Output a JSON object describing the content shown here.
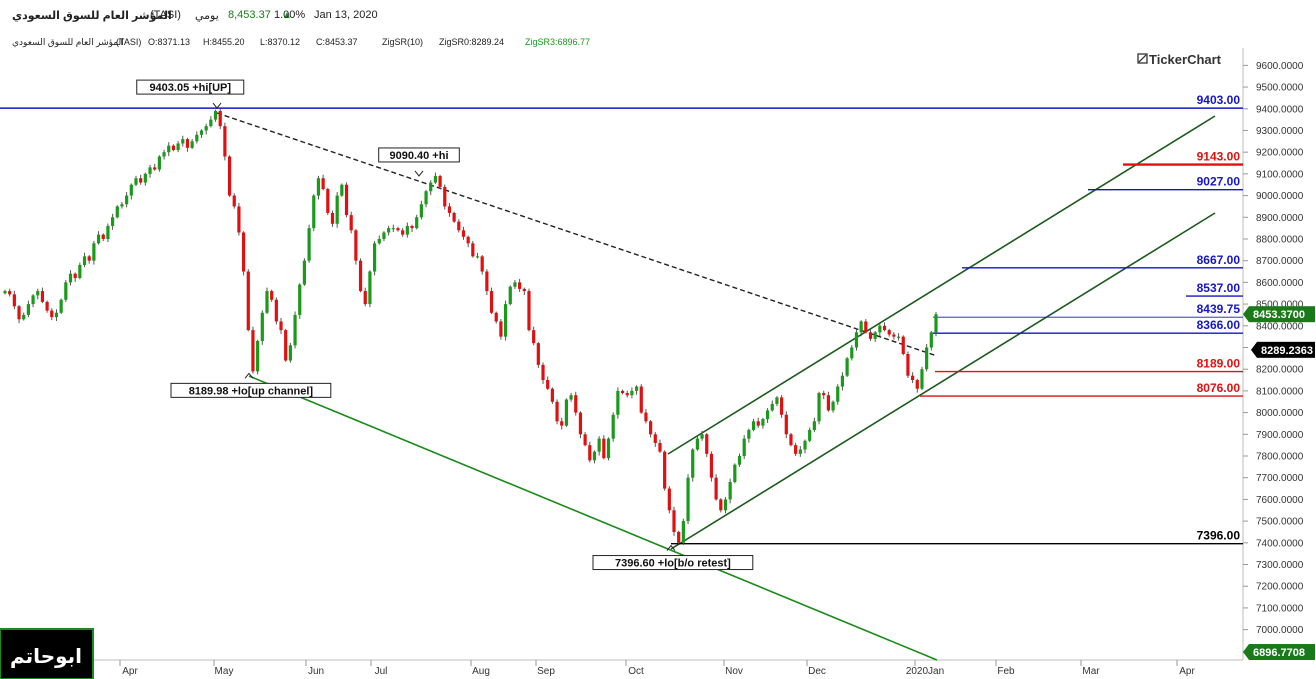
{
  "header": {
    "symbol_name": "المؤشر العام للسوق السعودي",
    "symbol_code": "(TASI)",
    "period": "يومي",
    "last_price": "8,453.37",
    "change_pct": "1.00%",
    "date": "Jan 13, 2020",
    "ohlc_name": "المؤشر العام للسوق السعودي",
    "ohlc_code": "(TASI)",
    "open": "O:8371.13",
    "high": "H:8455.20",
    "low": "L:8370.12",
    "close": "C:8453.37",
    "indicator": "ZigSR(10)",
    "zig0": "ZigSR0:8289.24",
    "zig3": "ZigSR3:6896.77"
  },
  "brand": "TickerChart",
  "watermark": "ابوحاتم",
  "chart_data": {
    "type": "candlestick",
    "y_range": [
      6860,
      9680
    ],
    "y_ticks": [
      "9600.0000",
      "9500.0000",
      "9400.0000",
      "9300.0000",
      "9200.0000",
      "9100.0000",
      "9000.0000",
      "8900.0000",
      "8800.0000",
      "8700.0000",
      "8600.0000",
      "8500.0000",
      "8400.0000",
      "8300.0000",
      "8200.0000",
      "8100.0000",
      "8000.0000",
      "7900.0000",
      "7800.0000",
      "7700.0000",
      "7600.0000",
      "7500.0000",
      "7400.0000",
      "7300.0000",
      "7200.0000",
      "7100.0000",
      "7000.0000",
      "6900.0000"
    ],
    "x_labels": [
      "Apr",
      "May",
      "Jun",
      "Jul",
      "Aug",
      "Sep",
      "Oct",
      "Nov",
      "Dec",
      "2020Jan",
      "Feb",
      "Mar",
      "Apr"
    ],
    "price_tags": [
      {
        "label": "8453.3700",
        "value": 8453.37,
        "color": "#1a7a1a"
      },
      {
        "label": "8289.2363",
        "value": 8289.24,
        "color": "#000000"
      },
      {
        "label": "6896.7708",
        "value": 6896.77,
        "color": "#1a7a1a"
      }
    ],
    "levels": [
      {
        "label": "9403.00",
        "value": 9403,
        "color": "#1515c8"
      },
      {
        "label": "9143.00",
        "value": 9143,
        "color": "#e01010"
      },
      {
        "label": "9027.00",
        "value": 9027,
        "color": "#1515c8"
      },
      {
        "label": "8667.00",
        "value": 8667,
        "color": "#1515c8"
      },
      {
        "label": "8537.00",
        "value": 8537,
        "color": "#1515c8"
      },
      {
        "label": "8439.75",
        "value": 8439.75,
        "color": "#1515c8"
      },
      {
        "label": "8366.00",
        "value": 8366,
        "color": "#1515c8"
      },
      {
        "label": "8189.00",
        "value": 8189,
        "color": "#e01010"
      },
      {
        "label": "8076.00",
        "value": 8076,
        "color": "#e01010"
      },
      {
        "label": "7396.00",
        "value": 7396,
        "color": "#000000"
      }
    ],
    "annotations": [
      {
        "label": "9403.05 +hi[UP]",
        "value": 9403.05,
        "position": "above"
      },
      {
        "label": "9090.40 +hi",
        "value": 9090.4,
        "position": "above"
      },
      {
        "label": "8189.98 +lo[up channel]",
        "value": 8189.98,
        "position": "below"
      },
      {
        "label": "7396.60 +lo[b/o retest]",
        "value": 7396.6,
        "position": "below"
      }
    ],
    "series": [
      {
        "values": [
          8560,
          8545,
          8490,
          8430,
          8450,
          8500,
          8540,
          8560,
          8510,
          8470,
          8440,
          8460,
          8520,
          8600,
          8640,
          8620,
          8680,
          8720,
          8700,
          8780,
          8820,
          8800,
          8860,
          8900,
          8950,
          8960,
          9000,
          9050,
          9080,
          9060,
          9100,
          9130,
          9120,
          9180,
          9200,
          9230,
          9210,
          9240,
          9260,
          9220,
          9250,
          9280,
          9300,
          9320,
          9350,
          9390,
          9320,
          9180,
          9000,
          8950,
          8830,
          8650,
          8380,
          8190,
          8330,
          8460,
          8560,
          8520,
          8420,
          8380,
          8240,
          8310,
          8450,
          8590,
          8700,
          8850,
          9000,
          9080,
          9030,
          8920,
          8870,
          9000,
          9050,
          8910,
          8840,
          8700,
          8560,
          8500,
          8650,
          8780,
          8800,
          8830,
          8850,
          8850,
          8840,
          8820,
          8860,
          8850,
          8900,
          8960,
          9020,
          9060,
          9090,
          9040,
          8950,
          8920,
          8880,
          8840,
          8810,
          8780,
          8720,
          8720,
          8650,
          8560,
          8460,
          8420,
          8350,
          8500,
          8580,
          8600,
          8570,
          8560,
          8380,
          8320,
          8220,
          8150,
          8110,
          8050,
          7960,
          7940,
          8060,
          8080,
          8000,
          7900,
          7850,
          7780,
          7820,
          7880,
          7790,
          7880,
          7990,
          8100,
          8090,
          8080,
          8100,
          8120,
          8000,
          7960,
          7900,
          7860,
          7820,
          7650,
          7550,
          7450,
          7400,
          7500,
          7700,
          7830,
          7880,
          7900,
          7810,
          7700,
          7600,
          7550,
          7600,
          7680,
          7760,
          7800,
          7880,
          7920,
          7960,
          7940,
          7970,
          8010,
          8040,
          8070,
          7990,
          7900,
          7850,
          7810,
          7830,
          7870,
          7920,
          7960,
          8090,
          8080,
          8010,
          8050,
          8120,
          8170,
          8250,
          8300,
          8370,
          8420,
          8370,
          8340,
          8370,
          8400,
          8380,
          8360,
          8350,
          8350,
          8270,
          8170,
          8150,
          8110,
          8200,
          8300,
          8370,
          8453.37
        ]
      }
    ]
  }
}
